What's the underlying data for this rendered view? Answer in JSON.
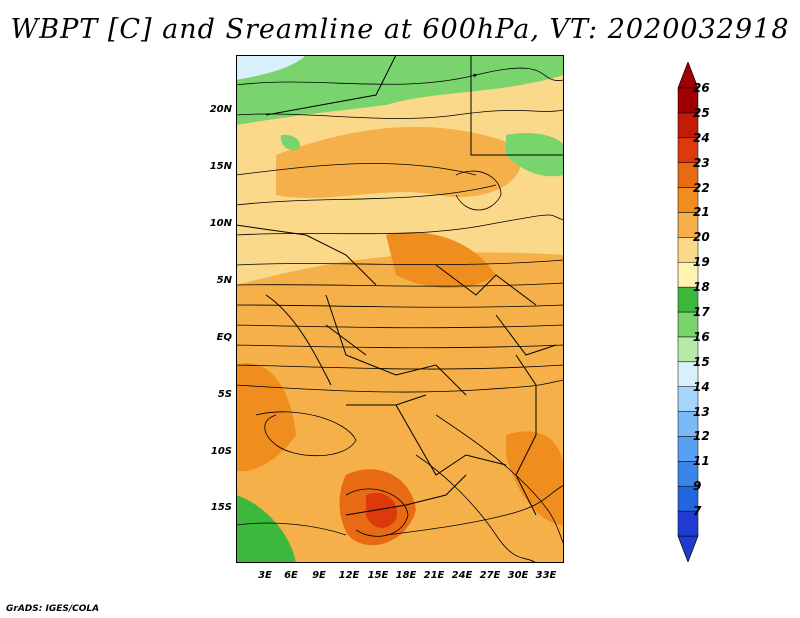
{
  "title": "WBPT [C] and Sreamline at 600hPa, VT: 2020032918",
  "footer": "GrADS: IGES/COLA",
  "map": {
    "lat_labels": [
      "20N",
      "15N",
      "10N",
      "5N",
      "EQ",
      "5S",
      "10S",
      "15S"
    ],
    "lon_labels": [
      "3E",
      "6E",
      "9E",
      "12E",
      "15E",
      "18E",
      "21E",
      "24E",
      "27E",
      "30E",
      "33E"
    ]
  },
  "colorbar": {
    "levels": [
      "7",
      "9",
      "11",
      "12",
      "13",
      "14",
      "15",
      "16",
      "17",
      "18",
      "19",
      "20",
      "21",
      "22",
      "23",
      "24",
      "25",
      "26"
    ],
    "colors": [
      "#1e3cd2",
      "#2366e0",
      "#3a84ea",
      "#5aa0f2",
      "#7cbaf6",
      "#a6d4fa",
      "#d8f0fc",
      "#b6eaa8",
      "#7ad46e",
      "#3cb83c",
      "#fff3b0",
      "#fbd98a",
      "#f6b04a",
      "#ef8e1e",
      "#e86a12",
      "#dc3a0c",
      "#c41a08",
      "#a00004"
    ],
    "top_color": "#a00004",
    "bottom_color": "#1e3cd2"
  }
}
